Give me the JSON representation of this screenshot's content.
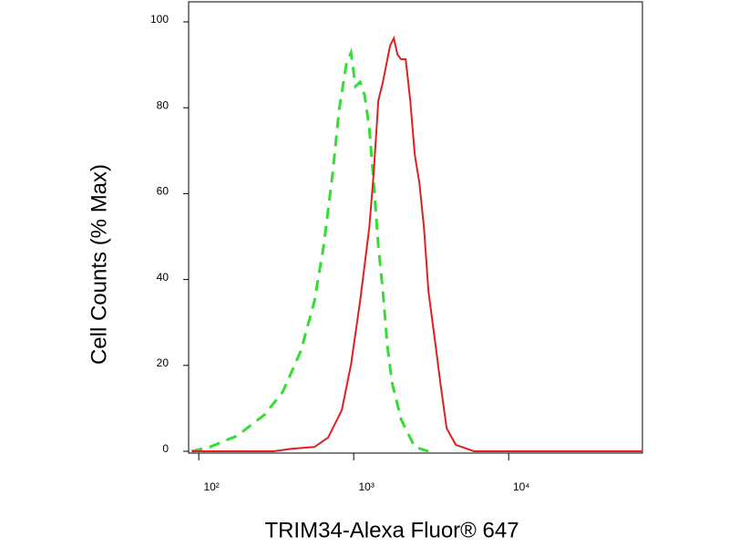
{
  "chart_data": {
    "type": "line",
    "x_label": "TRIM34-Alexa Fluor® 647",
    "y_label": "Cell Counts (% Max)",
    "log_x": true,
    "xlim": [
      86,
      73000
    ],
    "xticks": [
      {
        "value": 100,
        "label": "10²"
      },
      {
        "value": 1000,
        "label": "10³"
      },
      {
        "value": 10000,
        "label": "10⁴"
      }
    ],
    "ylim": [
      0,
      100
    ],
    "yticks": [
      0,
      20,
      40,
      60,
      80,
      100
    ],
    "series": [
      {
        "color": "#33dd33",
        "dashed": true,
        "x": [
          90,
          118,
          177,
          265,
          348,
          456,
          558,
          640,
          732,
          805,
          897,
          960,
          1027,
          1100,
          1177,
          1260,
          1346,
          1442,
          1543,
          1651,
          1766,
          2024,
          2478,
          3036
        ],
        "values": [
          0,
          1,
          3.6,
          8.5,
          13.8,
          23.4,
          35,
          47.8,
          64.8,
          79.6,
          90.2,
          92.8,
          85,
          86,
          82.8,
          75.4,
          62.6,
          47.8,
          37.2,
          24.4,
          16,
          7.4,
          1,
          0
        ]
      },
      {
        "color": "#e02020",
        "dashed": false,
        "x": [
          90,
          304,
          398,
          558,
          684,
          838,
          960,
          1100,
          1260,
          1346,
          1442,
          1543,
          1717,
          1815,
          1916,
          2024,
          2164,
          2316,
          2478,
          2654,
          2840,
          3036,
          3383,
          3623,
          3981,
          4560,
          5970,
          73300
        ],
        "values": [
          0,
          0,
          0.6,
          1,
          3.2,
          9.6,
          20.2,
          35,
          52,
          64.8,
          81.7,
          86,
          94.5,
          96.2,
          92.4,
          91.3,
          91.3,
          81.7,
          69,
          62.6,
          52,
          37.2,
          24.4,
          16,
          5.3,
          1.5,
          0,
          0
        ]
      }
    ]
  }
}
